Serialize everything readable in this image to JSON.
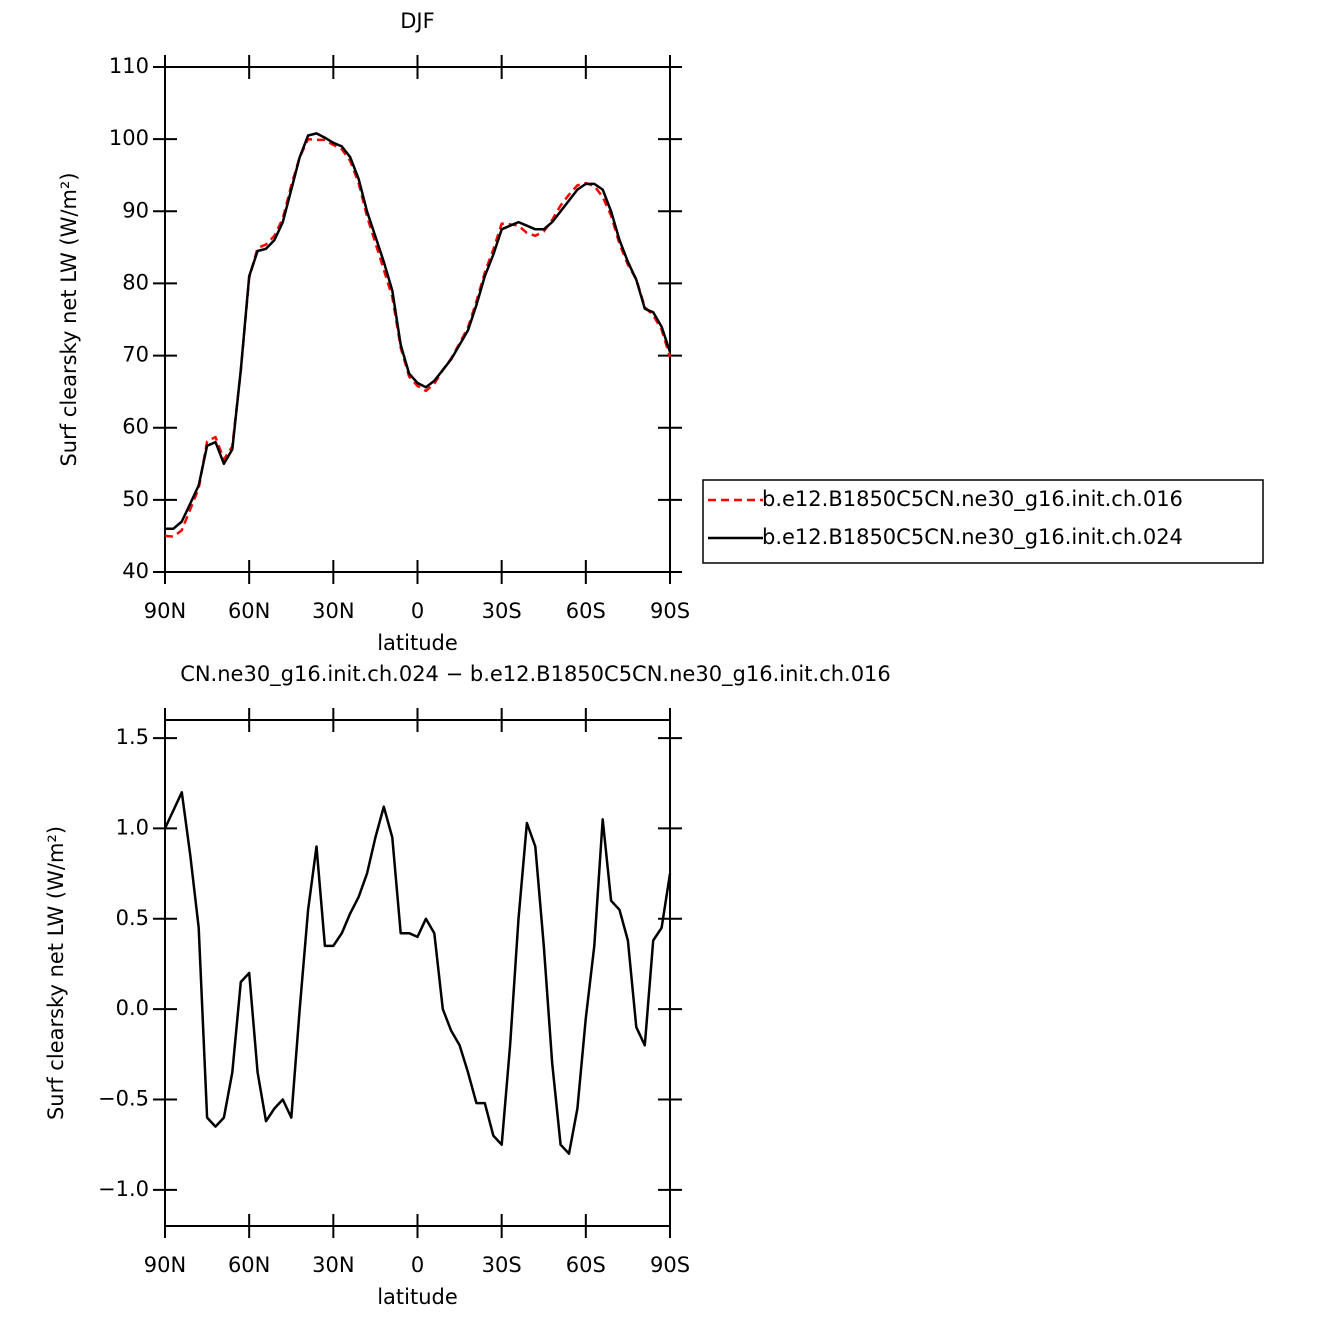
{
  "chart_data": [
    {
      "type": "line",
      "title": "DJF",
      "xlabel": "latitude",
      "ylabel": "Surf clearsky net LW (W/m²)",
      "x": [
        90,
        87,
        84,
        81,
        78,
        75,
        72,
        69,
        66,
        63,
        60,
        57,
        54,
        51,
        48,
        45,
        42,
        39,
        36,
        33,
        30,
        27,
        24,
        21,
        18,
        15,
        12,
        9,
        6,
        3,
        0,
        -3,
        -6,
        -9,
        -12,
        -15,
        -18,
        -21,
        -24,
        -27,
        -30,
        -33,
        -36,
        -39,
        -42,
        -45,
        -48,
        -51,
        -54,
        -57,
        -60,
        -63,
        -66,
        -69,
        -72,
        -75,
        -78,
        -81,
        -84,
        -87,
        -90
      ],
      "series": [
        {
          "name": "b.e12.B1850C5CN.ne30_g16.init.ch.016",
          "color": "#ff0000",
          "dash": "dashed",
          "values": [
            45.0,
            44.9,
            45.8,
            48.7,
            51.6,
            58.1,
            58.7,
            55.6,
            57.4,
            67.9,
            80.8,
            84.9,
            85.4,
            86.6,
            89.0,
            93.6,
            97.5,
            100.0,
            99.9,
            99.9,
            99.2,
            98.6,
            97.0,
            93.9,
            89.3,
            85.6,
            81.9,
            78.1,
            71.1,
            67.1,
            65.8,
            65.1,
            66.1,
            68.0,
            69.6,
            71.7,
            73.9,
            77.5,
            81.5,
            84.7,
            88.3,
            88.2,
            88.0,
            87.0,
            86.6,
            87.2,
            88.8,
            90.8,
            92.3,
            93.6,
            93.9,
            93.5,
            92.0,
            89.4,
            85.5,
            82.6,
            80.6,
            76.7,
            75.6,
            73.6,
            69.8
          ]
        },
        {
          "name": "b.e12.B1850C5CN.ne30_g16.init.ch.024",
          "color": "#000000",
          "dash": "solid",
          "values": [
            46.0,
            46.0,
            47.0,
            49.5,
            52.0,
            57.5,
            58.0,
            55.0,
            57.0,
            68.0,
            81.0,
            84.5,
            84.8,
            86.0,
            88.5,
            93.0,
            97.5,
            100.5,
            100.8,
            100.2,
            99.5,
            99.0,
            97.5,
            94.5,
            90.0,
            86.5,
            83.0,
            79.0,
            71.5,
            67.5,
            66.2,
            65.6,
            66.5,
            68.0,
            69.5,
            71.5,
            73.5,
            77.0,
            81.0,
            84.0,
            87.5,
            88.0,
            88.5,
            88.0,
            87.5,
            87.5,
            88.5,
            90.0,
            91.5,
            93.0,
            93.8,
            93.8,
            93.0,
            90.0,
            86.0,
            83.0,
            80.5,
            76.5,
            76.0,
            74.0,
            70.5
          ]
        }
      ],
      "xlim": [
        90,
        -90
      ],
      "xticks": [
        {
          "value": 90,
          "label": "90N"
        },
        {
          "value": 60,
          "label": "60N"
        },
        {
          "value": 30,
          "label": "30N"
        },
        0,
        {
          "value": -30,
          "label": "30S"
        },
        {
          "value": -60,
          "label": "60S"
        },
        {
          "value": -90,
          "label": "90S"
        }
      ],
      "ylim": [
        40,
        110
      ],
      "yticks": [
        40,
        50,
        60,
        70,
        80,
        90,
        100,
        110
      ]
    },
    {
      "type": "line",
      "title": "CN.ne30_g16.init.ch.024 − b.e12.B1850C5CN.ne30_g16.init.ch.016",
      "xlabel": "latitude",
      "ylabel": "Surf clearsky net LW (W/m²)",
      "x": [
        90,
        87,
        84,
        81,
        78,
        75,
        72,
        69,
        66,
        63,
        60,
        57,
        54,
        51,
        48,
        45,
        42,
        39,
        36,
        33,
        30,
        27,
        24,
        21,
        18,
        15,
        12,
        9,
        6,
        3,
        0,
        -3,
        -6,
        -9,
        -12,
        -15,
        -18,
        -21,
        -24,
        -27,
        -30,
        -33,
        -36,
        -39,
        -42,
        -45,
        -48,
        -51,
        -54,
        -57,
        -60,
        -63,
        -66,
        -69,
        -72,
        -75,
        -78,
        -81,
        -84,
        -87,
        -90
      ],
      "series": [
        {
          "color": "#000000",
          "dash": "solid",
          "values": [
            1.0,
            1.1,
            1.2,
            0.85,
            0.45,
            -0.6,
            -0.65,
            -0.6,
            -0.35,
            0.15,
            0.2,
            -0.35,
            -0.62,
            -0.55,
            -0.5,
            -0.6,
            0.0,
            0.55,
            0.9,
            0.35,
            0.35,
            0.42,
            0.53,
            0.62,
            0.75,
            0.95,
            1.12,
            0.95,
            0.42,
            0.42,
            0.4,
            0.5,
            0.42,
            0.0,
            -0.12,
            -0.2,
            -0.35,
            -0.52,
            -0.52,
            -0.7,
            -0.75,
            -0.2,
            0.5,
            1.03,
            0.9,
            0.35,
            -0.3,
            -0.75,
            -0.8,
            -0.55,
            -0.05,
            0.35,
            1.05,
            0.6,
            0.55,
            0.38,
            -0.1,
            -0.2,
            0.38,
            0.45,
            0.75
          ]
        }
      ],
      "xlim": [
        90,
        -90
      ],
      "xticks": [
        {
          "value": 90,
          "label": "90N"
        },
        {
          "value": 60,
          "label": "60N"
        },
        {
          "value": 30,
          "label": "30N"
        },
        0,
        {
          "value": -30,
          "label": "30S"
        },
        {
          "value": -60,
          "label": "60S"
        },
        {
          "value": -90,
          "label": "90S"
        }
      ],
      "ylim": [
        -1.2,
        1.6
      ],
      "yticks": [
        {
          "value": -1.0,
          "label": "−1.0"
        },
        {
          "value": -0.5,
          "label": "−0.5"
        },
        {
          "value": 0.0,
          "label": "0.0"
        },
        {
          "value": 0.5,
          "label": "0.5"
        },
        {
          "value": 1.0,
          "label": "1.0"
        },
        {
          "value": 1.5,
          "label": "1.5"
        }
      ]
    }
  ]
}
